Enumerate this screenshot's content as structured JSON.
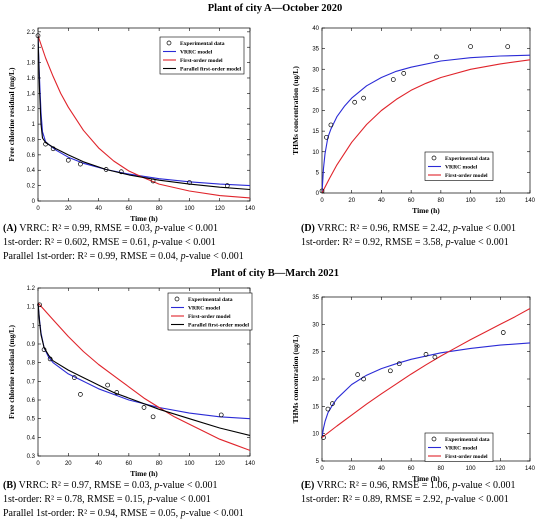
{
  "sections": [
    {
      "title": "Plant of city A—October 2020"
    },
    {
      "title": "Plant of city B—March 2021"
    }
  ],
  "captions": {
    "A": [
      {
        "label": "(A)",
        "text": " VRRC: R² = 0.99, RMSE = 0.03, ",
        "pv": "p",
        "tail": "-value < 0.001"
      },
      {
        "label": "",
        "text": "1st-order: R² = 0.602, RMSE = 0.61, ",
        "pv": "p",
        "tail": "-value < 0.001"
      },
      {
        "label": "",
        "text": "Parallel 1st-order: R² = 0.99, RMSE = 0.04, ",
        "pv": "p",
        "tail": "-value < 0.001"
      }
    ],
    "D": [
      {
        "label": "(D)",
        "text": " VRRC: R² = 0.96, RMSE = 2.42, ",
        "pv": "p",
        "tail": "-value < 0.001"
      },
      {
        "label": "",
        "text": "1st-order: R² = 0.92, RMSE = 3.58, ",
        "pv": "p",
        "tail": "-value < 0.001"
      }
    ],
    "B": [
      {
        "label": "(B)",
        "text": " VRRC: R² = 0.97, RMSE = 0.03, ",
        "pv": "p",
        "tail": "-value < 0.001"
      },
      {
        "label": "",
        "text": "1st-order: R² = 0.78, RMSE = 0.15, ",
        "pv": "p",
        "tail": "-value < 0.001"
      },
      {
        "label": "",
        "text": "Parallel 1st-order: R² = 0.94, RMSE = 0.05, ",
        "pv": "p",
        "tail": "-value < 0.001"
      }
    ],
    "E": [
      {
        "label": "(E)",
        "text": " VRRC: R² = 0.96, RMSE = 1.06, ",
        "pv": "p",
        "tail": "-value < 0.001"
      },
      {
        "label": "",
        "text": "1st-order: R² = 0.89, RMSE = 2.92, ",
        "pv": "p",
        "tail": "-value < 0.001"
      }
    ]
  },
  "colors": {
    "vrrc": "#2b2bd6",
    "first_order": "#e0242b",
    "parallel": "#000000",
    "axis": "#000000"
  },
  "chart_data": [
    {
      "id": "A",
      "type": "line",
      "xlabel": "Time (h)",
      "ylabel": "Free chlorine residual (mg/L)",
      "xlim": [
        0,
        140
      ],
      "ylim": [
        0,
        2.25
      ],
      "xticks": [
        0,
        20,
        40,
        60,
        80,
        100,
        120,
        140
      ],
      "yticks": [
        0,
        0.2,
        0.4,
        0.6,
        0.8,
        1,
        1.2,
        1.4,
        1.6,
        1.8,
        2,
        2.2
      ],
      "legend_position": "top-right",
      "legend": [
        "Experimental data",
        "VRRC model",
        "First-order model",
        "Parallel first-order model"
      ],
      "scatter": {
        "name": "Experimental data",
        "x": [
          0,
          5,
          10,
          20,
          28,
          45,
          55,
          76,
          100,
          125
        ],
        "y": [
          2.15,
          0.74,
          0.68,
          0.53,
          0.48,
          0.41,
          0.38,
          0.26,
          0.24,
          0.2
        ]
      },
      "series": [
        {
          "name": "VRRC model",
          "color": "vrrc",
          "x": [
            0,
            1,
            2,
            3,
            5,
            8,
            12,
            20,
            30,
            45,
            60,
            80,
            100,
            120,
            140
          ],
          "y": [
            2.15,
            1.6,
            1.15,
            0.9,
            0.77,
            0.72,
            0.66,
            0.57,
            0.49,
            0.41,
            0.35,
            0.29,
            0.25,
            0.22,
            0.2
          ]
        },
        {
          "name": "First-order model",
          "color": "first_order",
          "x": [
            0,
            5,
            10,
            15,
            20,
            30,
            40,
            50,
            60,
            70,
            80,
            100,
            120,
            140
          ],
          "y": [
            2.15,
            1.86,
            1.62,
            1.4,
            1.22,
            0.92,
            0.69,
            0.52,
            0.39,
            0.3,
            0.22,
            0.13,
            0.07,
            0.04
          ]
        },
        {
          "name": "Parallel first-order model",
          "color": "parallel",
          "x": [
            0,
            1,
            2,
            3,
            5,
            10,
            20,
            30,
            45,
            60,
            80,
            100,
            120,
            140
          ],
          "y": [
            2.15,
            1.45,
            1.0,
            0.82,
            0.76,
            0.7,
            0.6,
            0.51,
            0.41,
            0.34,
            0.27,
            0.22,
            0.18,
            0.15
          ]
        }
      ]
    },
    {
      "id": "D",
      "type": "line",
      "xlabel": "Time (h)",
      "ylabel": "THMs concentration (ug/L)",
      "xlim": [
        0,
        140
      ],
      "ylim": [
        0,
        40
      ],
      "xticks": [
        0,
        20,
        40,
        60,
        80,
        100,
        120,
        140
      ],
      "yticks": [
        0,
        5,
        10,
        15,
        20,
        25,
        30,
        35,
        40
      ],
      "legend_position": "bottom-right",
      "legend": [
        "Experimental data",
        "VRRC model",
        "First-order model"
      ],
      "scatter": {
        "name": "Experimental data",
        "x": [
          0,
          3,
          6,
          22,
          28,
          48,
          55,
          77,
          100,
          125
        ],
        "y": [
          0.5,
          13.5,
          16.5,
          22,
          23,
          27.5,
          29,
          33,
          35.5,
          35.5
        ]
      },
      "series": [
        {
          "name": "VRRC model",
          "color": "vrrc",
          "x": [
            0,
            1,
            2,
            4,
            6,
            10,
            15,
            20,
            30,
            40,
            50,
            60,
            80,
            100,
            120,
            140
          ],
          "y": [
            0,
            6,
            9.5,
            13.5,
            15.5,
            18.5,
            21,
            23,
            26,
            28,
            29.5,
            30.5,
            32,
            32.8,
            33.2,
            33.4
          ]
        },
        {
          "name": "First-order model",
          "color": "first_order",
          "x": [
            0,
            5,
            10,
            20,
            30,
            40,
            50,
            60,
            70,
            80,
            100,
            120,
            140
          ],
          "y": [
            0,
            3.5,
            6.8,
            12.3,
            16.6,
            20,
            22.7,
            24.9,
            26.6,
            28,
            30,
            31.3,
            32.3
          ]
        }
      ]
    },
    {
      "id": "B",
      "type": "line",
      "xlabel": "Time (h)",
      "ylabel": "Free chlorine residual (mg/L)",
      "xlim": [
        0,
        140
      ],
      "ylim": [
        0.3,
        1.2
      ],
      "xticks": [
        0,
        20,
        40,
        60,
        80,
        100,
        120,
        140
      ],
      "yticks": [
        0.3,
        0.4,
        0.5,
        0.6,
        0.7,
        0.8,
        0.9,
        1,
        1.1,
        1.2
      ],
      "legend_position": "top-right",
      "legend": [
        "Experimental data",
        "VRRC model",
        "First-order model",
        "Parallel first-order model"
      ],
      "scatter": {
        "name": "Experimental data",
        "x": [
          1,
          4,
          8,
          24,
          28,
          46,
          52,
          70,
          76,
          121
        ],
        "y": [
          1.11,
          0.87,
          0.82,
          0.72,
          0.63,
          0.68,
          0.64,
          0.56,
          0.51,
          0.52
        ]
      },
      "series": [
        {
          "name": "VRRC model",
          "color": "vrrc",
          "x": [
            0,
            1,
            2,
            4,
            7,
            10,
            20,
            30,
            40,
            50,
            60,
            80,
            100,
            120,
            140
          ],
          "y": [
            1.12,
            1.03,
            0.96,
            0.88,
            0.83,
            0.8,
            0.74,
            0.7,
            0.66,
            0.63,
            0.6,
            0.56,
            0.53,
            0.51,
            0.5
          ]
        },
        {
          "name": "First-order model",
          "color": "first_order",
          "x": [
            0,
            10,
            20,
            30,
            40,
            50,
            60,
            70,
            80,
            90,
            100,
            110,
            120,
            130,
            140
          ],
          "y": [
            1.12,
            1.03,
            0.94,
            0.86,
            0.79,
            0.73,
            0.67,
            0.61,
            0.56,
            0.51,
            0.47,
            0.43,
            0.39,
            0.36,
            0.33
          ]
        },
        {
          "name": "Parallel first-order model",
          "color": "parallel",
          "x": [
            0,
            1,
            2,
            4,
            7,
            10,
            20,
            30,
            40,
            50,
            60,
            80,
            100,
            120,
            140
          ],
          "y": [
            1.12,
            1.02,
            0.95,
            0.88,
            0.84,
            0.81,
            0.76,
            0.72,
            0.68,
            0.64,
            0.61,
            0.55,
            0.5,
            0.45,
            0.41
          ]
        }
      ]
    },
    {
      "id": "E",
      "type": "line",
      "xlabel": "Time (h)",
      "ylabel": "THMs concentration (ug/L)",
      "xlim": [
        0,
        140
      ],
      "ylim": [
        5,
        35
      ],
      "xticks": [
        0,
        20,
        40,
        60,
        80,
        100,
        120,
        140
      ],
      "yticks": [
        5,
        10,
        15,
        20,
        25,
        30,
        35
      ],
      "legend_position": "bottom-right",
      "legend": [
        "Experimental data",
        "VRRC model",
        "First-order model"
      ],
      "scatter": {
        "name": "Experimental data",
        "x": [
          1,
          4,
          7,
          24,
          28,
          46,
          52,
          70,
          76,
          122
        ],
        "y": [
          9.3,
          14.5,
          15.5,
          20.8,
          20,
          21.5,
          22.8,
          24.5,
          24,
          28.5
        ]
      },
      "series": [
        {
          "name": "VRRC model",
          "color": "vrrc",
          "x": [
            0,
            1,
            2,
            4,
            7,
            10,
            20,
            30,
            40,
            50,
            60,
            80,
            100,
            120,
            140
          ],
          "y": [
            9.3,
            11,
            12.2,
            13.8,
            15.2,
            16.4,
            19,
            20.7,
            21.9,
            22.8,
            23.6,
            24.8,
            25.6,
            26.2,
            26.6
          ]
        },
        {
          "name": "First-order model",
          "color": "first_order",
          "x": [
            0,
            10,
            20,
            30,
            40,
            50,
            60,
            70,
            80,
            90,
            100,
            110,
            120,
            130,
            140
          ],
          "y": [
            9.3,
            11.4,
            13.4,
            15.4,
            17.3,
            19.1,
            20.9,
            22.6,
            24.2,
            25.7,
            27.2,
            28.6,
            30,
            31.4,
            32.9
          ]
        }
      ]
    }
  ]
}
